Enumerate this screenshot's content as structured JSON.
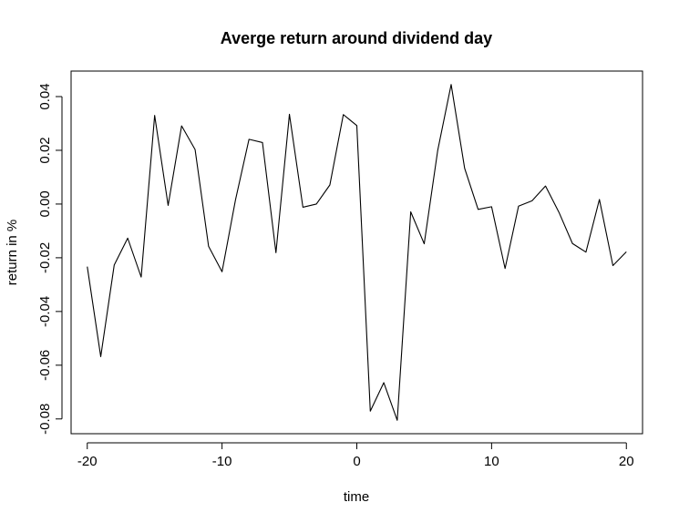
{
  "chart_data": {
    "type": "line",
    "title": "Averge return around dividend day",
    "xlabel": "time",
    "ylabel": "return in %",
    "xlim": [
      -21.2,
      21.2
    ],
    "ylim": [
      -0.0855,
      0.0495
    ],
    "x_ticks": [
      -20,
      -10,
      0,
      10,
      20
    ],
    "x_tick_labels": [
      "-20",
      "-10",
      "0",
      "10",
      "20"
    ],
    "y_ticks": [
      -0.08,
      -0.06,
      -0.04,
      -0.02,
      0.0,
      0.02,
      0.04
    ],
    "y_tick_labels": [
      "-0.08",
      "-0.06",
      "-0.04",
      "-0.02",
      "0.00",
      "0.02",
      "0.04"
    ],
    "grid": false,
    "x": [
      -20,
      -19,
      -18,
      -17,
      -16,
      -15,
      -14,
      -13,
      -12,
      -11,
      -10,
      -9,
      -8,
      -7,
      -6,
      -5,
      -4,
      -3,
      -2,
      -1,
      0,
      1,
      2,
      3,
      4,
      5,
      6,
      7,
      8,
      9,
      10,
      11,
      12,
      13,
      14,
      15,
      16,
      17,
      18,
      19,
      20
    ],
    "series": [
      {
        "values": [
          -0.0233,
          -0.0568,
          -0.0227,
          -0.0127,
          -0.0272,
          0.033,
          -0.0005,
          0.0291,
          0.0203,
          -0.0157,
          -0.0252,
          0.0016,
          0.0241,
          0.0229,
          -0.0181,
          0.0334,
          -0.0012,
          0.0,
          0.0071,
          0.0333,
          0.0292,
          -0.0771,
          -0.0665,
          -0.0805,
          -0.0029,
          -0.0148,
          0.0199,
          0.0445,
          0.0133,
          -0.002,
          -0.001,
          -0.024,
          -0.0008,
          0.0012,
          0.0067,
          -0.0031,
          -0.0147,
          -0.0179,
          0.0017,
          -0.0229,
          -0.0178
        ]
      }
    ]
  }
}
